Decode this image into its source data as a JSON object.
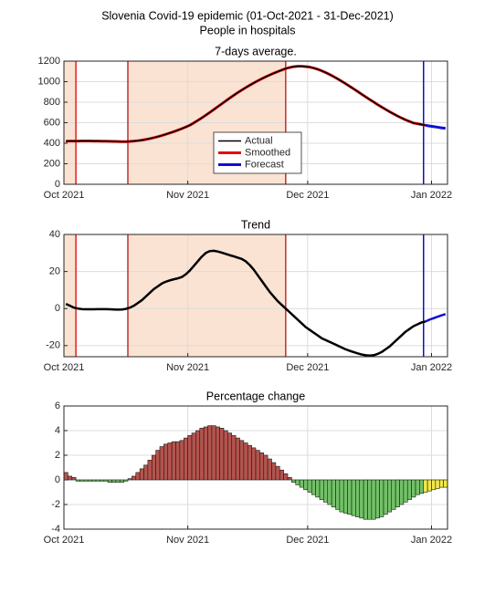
{
  "title": "Slovenia Covid-19 epidemic (01-Oct-2021 - 31-Dec-2021)",
  "subtitle": "People in hospitals",
  "chart_data": [
    {
      "type": "line",
      "title": "7-days average.",
      "categories": [
        "Oct 2021",
        null,
        null,
        null,
        null,
        null,
        null,
        null,
        null,
        null,
        null,
        null,
        null,
        null,
        null,
        null,
        null,
        null,
        null,
        null,
        null,
        null,
        null,
        null,
        null,
        null,
        null,
        null,
        null,
        null,
        null,
        "Nov 2021",
        null,
        null,
        null,
        null,
        null,
        null,
        null,
        null,
        null,
        null,
        null,
        null,
        null,
        null,
        null,
        null,
        null,
        null,
        null,
        null,
        null,
        null,
        null,
        null,
        null,
        null,
        null,
        null,
        null,
        "Dec 2021",
        null,
        null,
        null,
        null,
        null,
        null,
        null,
        null,
        null,
        null,
        null,
        null,
        null,
        null,
        null,
        null,
        null,
        null,
        null,
        null,
        null,
        null,
        null,
        null,
        null,
        null,
        null,
        null,
        null,
        null,
        "Jan 2022",
        null,
        null,
        null
      ],
      "ylim": [
        0,
        1200
      ],
      "yticks": [
        0,
        200,
        400,
        600,
        800,
        1000,
        1200
      ],
      "grid": true,
      "legend": "south",
      "span_color": "#fae3d3",
      "spans": [
        [
          0,
          3
        ],
        [
          16,
          55.5
        ]
      ],
      "vlines": [
        {
          "x": 3,
          "color": "#e02020"
        },
        {
          "x": 16,
          "color": "#c03030"
        },
        {
          "x": 55.5,
          "color": "#c03030"
        },
        {
          "x": 90,
          "color": "#1010c0"
        }
      ],
      "series": [
        {
          "name": "Actual",
          "color": "#000000",
          "width": 1.5,
          "values": [
            420,
            421,
            421,
            421,
            422,
            422,
            422,
            421,
            421,
            420,
            420,
            419,
            418,
            417,
            416,
            416,
            418,
            421,
            425,
            430,
            437,
            445,
            454,
            464,
            475,
            487,
            500,
            513,
            527,
            542,
            558,
            575,
            598,
            622,
            647,
            673,
            700,
            728,
            756,
            784,
            812,
            840,
            867,
            893,
            918,
            942,
            965,
            987,
            1008,
            1028,
            1047,
            1065,
            1082,
            1098,
            1113,
            1127,
            1138,
            1146,
            1150,
            1150,
            1147,
            1142,
            1133,
            1121,
            1106,
            1089,
            1070,
            1049,
            1027,
            1004,
            980,
            955,
            930,
            904,
            878,
            852,
            827,
            802,
            777,
            753,
            730,
            707,
            686,
            665,
            646,
            628,
            612,
            597,
            590,
            582,
            575,
            null,
            null,
            null,
            null,
            null
          ]
        },
        {
          "name": "Smoothed",
          "color": "#e01010",
          "width": 3,
          "values": [
            420,
            421,
            421,
            421,
            422,
            422,
            422,
            421,
            421,
            420,
            420,
            419,
            418,
            417,
            416,
            416,
            418,
            421,
            425,
            430,
            437,
            445,
            454,
            464,
            475,
            487,
            500,
            513,
            527,
            542,
            558,
            575,
            598,
            622,
            647,
            673,
            700,
            728,
            756,
            784,
            812,
            840,
            867,
            893,
            918,
            942,
            965,
            987,
            1008,
            1028,
            1047,
            1065,
            1082,
            1098,
            1113,
            1127,
            1138,
            1146,
            1150,
            1150,
            1147,
            1142,
            1133,
            1121,
            1106,
            1089,
            1070,
            1049,
            1027,
            1004,
            980,
            955,
            930,
            904,
            878,
            852,
            827,
            802,
            777,
            753,
            730,
            707,
            686,
            665,
            646,
            628,
            612,
            597,
            590,
            582,
            575,
            null,
            null,
            null,
            null,
            null
          ]
        },
        {
          "name": "Forecast",
          "color": "#1010d0",
          "width": 3,
          "values": [
            null,
            null,
            null,
            null,
            null,
            null,
            null,
            null,
            null,
            null,
            null,
            null,
            null,
            null,
            null,
            null,
            null,
            null,
            null,
            null,
            null,
            null,
            null,
            null,
            null,
            null,
            null,
            null,
            null,
            null,
            null,
            null,
            null,
            null,
            null,
            null,
            null,
            null,
            null,
            null,
            null,
            null,
            null,
            null,
            null,
            null,
            null,
            null,
            null,
            null,
            null,
            null,
            null,
            null,
            null,
            null,
            null,
            null,
            null,
            null,
            null,
            null,
            null,
            null,
            null,
            null,
            null,
            null,
            null,
            null,
            null,
            null,
            null,
            null,
            null,
            null,
            null,
            null,
            null,
            null,
            null,
            null,
            null,
            null,
            null,
            null,
            null,
            null,
            null,
            null,
            575,
            568,
            562,
            556,
            550,
            545
          ]
        }
      ]
    },
    {
      "type": "line",
      "title": "Trend",
      "categories": [
        "Oct 2021",
        null,
        null,
        null,
        null,
        null,
        null,
        null,
        null,
        null,
        null,
        null,
        null,
        null,
        null,
        null,
        null,
        null,
        null,
        null,
        null,
        null,
        null,
        null,
        null,
        null,
        null,
        null,
        null,
        null,
        null,
        "Nov 2021",
        null,
        null,
        null,
        null,
        null,
        null,
        null,
        null,
        null,
        null,
        null,
        null,
        null,
        null,
        null,
        null,
        null,
        null,
        null,
        null,
        null,
        null,
        null,
        null,
        null,
        null,
        null,
        null,
        null,
        "Dec 2021",
        null,
        null,
        null,
        null,
        null,
        null,
        null,
        null,
        null,
        null,
        null,
        null,
        null,
        null,
        null,
        null,
        null,
        null,
        null,
        null,
        null,
        null,
        null,
        null,
        null,
        null,
        null,
        null,
        null,
        null,
        "Jan 2022",
        null,
        null,
        null
      ],
      "ylim": [
        -26,
        40
      ],
      "yticks": [
        -20,
        0,
        20,
        40
      ],
      "grid": true,
      "span_color": "#fae3d3",
      "spans": [
        [
          0,
          3
        ],
        [
          16,
          55.5
        ]
      ],
      "vlines": [
        {
          "x": 3,
          "color": "#e02020"
        },
        {
          "x": 16,
          "color": "#c03030"
        },
        {
          "x": 55.5,
          "color": "#c03030"
        },
        {
          "x": 90,
          "color": "#1010c0"
        }
      ],
      "series": [
        {
          "color": "#000000",
          "width": 2.5,
          "values": [
            2.5,
            1.5,
            0.5,
            0,
            -0.3,
            -0.4,
            -0.4,
            -0.4,
            -0.3,
            -0.3,
            -0.3,
            -0.4,
            -0.5,
            -0.6,
            -0.5,
            -0.2,
            0.5,
            1.5,
            3,
            4.5,
            6.5,
            8.5,
            10.5,
            12,
            13.5,
            14.5,
            15.2,
            15.8,
            16.3,
            17,
            18.5,
            20.5,
            23,
            25.5,
            28,
            30,
            31,
            31.2,
            30.8,
            30.2,
            29.5,
            28.8,
            28.2,
            27.5,
            26.8,
            25.5,
            23.5,
            21,
            18,
            15,
            12,
            9,
            6.5,
            4,
            2,
            0,
            -2,
            -4,
            -6,
            -8,
            -10,
            -11.5,
            -13,
            -14.5,
            -16,
            -17,
            -18,
            -19,
            -20,
            -21,
            -22,
            -22.8,
            -23.5,
            -24.2,
            -24.8,
            -25.2,
            -25.4,
            -25.2,
            -24.5,
            -23.5,
            -22,
            -20.5,
            -18.5,
            -16.5,
            -14.5,
            -12.5,
            -11,
            -9.5,
            -8.5,
            -7.5,
            -7,
            null,
            null,
            null,
            null,
            null
          ]
        },
        {
          "color": "#1010d0",
          "width": 2.5,
          "values": [
            null,
            null,
            null,
            null,
            null,
            null,
            null,
            null,
            null,
            null,
            null,
            null,
            null,
            null,
            null,
            null,
            null,
            null,
            null,
            null,
            null,
            null,
            null,
            null,
            null,
            null,
            null,
            null,
            null,
            null,
            null,
            null,
            null,
            null,
            null,
            null,
            null,
            null,
            null,
            null,
            null,
            null,
            null,
            null,
            null,
            null,
            null,
            null,
            null,
            null,
            null,
            null,
            null,
            null,
            null,
            null,
            null,
            null,
            null,
            null,
            null,
            null,
            null,
            null,
            null,
            null,
            null,
            null,
            null,
            null,
            null,
            null,
            null,
            null,
            null,
            null,
            null,
            null,
            null,
            null,
            null,
            null,
            null,
            null,
            null,
            null,
            null,
            null,
            null,
            null,
            -7,
            -6,
            -5.2,
            -4.4,
            -3.7,
            -3
          ]
        }
      ]
    },
    {
      "type": "bar",
      "title": "Percentage change",
      "categories": [
        "Oct 2021",
        null,
        null,
        null,
        null,
        null,
        null,
        null,
        null,
        null,
        null,
        null,
        null,
        null,
        null,
        null,
        null,
        null,
        null,
        null,
        null,
        null,
        null,
        null,
        null,
        null,
        null,
        null,
        null,
        null,
        null,
        "Nov 2021",
        null,
        null,
        null,
        null,
        null,
        null,
        null,
        null,
        null,
        null,
        null,
        null,
        null,
        null,
        null,
        null,
        null,
        null,
        null,
        null,
        null,
        null,
        null,
        null,
        null,
        null,
        null,
        null,
        null,
        "Dec 2021",
        null,
        null,
        null,
        null,
        null,
        null,
        null,
        null,
        null,
        null,
        null,
        null,
        null,
        null,
        null,
        null,
        null,
        null,
        null,
        null,
        null,
        null,
        null,
        null,
        null,
        null,
        null,
        null,
        null,
        null,
        "Jan 2022",
        null,
        null,
        null
      ],
      "ylim": [
        -4,
        6
      ],
      "yticks": [
        -4,
        -2,
        0,
        2,
        4,
        6
      ],
      "grid": true,
      "series": [
        {
          "colors": {
            "positive": "#b5534d",
            "negative": "#72c267"
          },
          "values": [
            0.6,
            0.3,
            0.2,
            -0.1,
            -0.1,
            -0.1,
            -0.1,
            -0.1,
            -0.1,
            -0.1,
            -0.1,
            -0.2,
            -0.2,
            -0.2,
            -0.2,
            -0.1,
            0.1,
            0.3,
            0.6,
            0.9,
            1.2,
            1.6,
            2,
            2.4,
            2.7,
            2.9,
            3,
            3.1,
            3.1,
            3.2,
            3.4,
            3.6,
            3.8,
            4,
            4.2,
            4.3,
            4.4,
            4.4,
            4.3,
            4.2,
            4,
            3.8,
            3.6,
            3.4,
            3.2,
            3,
            2.8,
            2.6,
            2.4,
            2.2,
            2,
            1.7,
            1.4,
            1.1,
            0.8,
            0.5,
            0.2,
            -0.2,
            -0.4,
            -0.6,
            -0.8,
            -1,
            -1.2,
            -1.4,
            -1.6,
            -1.8,
            -2,
            -2.2,
            -2.4,
            -2.6,
            -2.7,
            -2.8,
            -2.9,
            -3,
            -3.1,
            -3.2,
            -3.2,
            -3.2,
            -3.1,
            -3,
            -2.8,
            -2.6,
            -2.4,
            -2.2,
            -2,
            -1.8,
            -1.6,
            -1.4,
            -1.2,
            -1.1,
            null,
            null,
            null,
            null,
            null,
            null
          ]
        },
        {
          "color": "#f2ea45",
          "values": [
            null,
            null,
            null,
            null,
            null,
            null,
            null,
            null,
            null,
            null,
            null,
            null,
            null,
            null,
            null,
            null,
            null,
            null,
            null,
            null,
            null,
            null,
            null,
            null,
            null,
            null,
            null,
            null,
            null,
            null,
            null,
            null,
            null,
            null,
            null,
            null,
            null,
            null,
            null,
            null,
            null,
            null,
            null,
            null,
            null,
            null,
            null,
            null,
            null,
            null,
            null,
            null,
            null,
            null,
            null,
            null,
            null,
            null,
            null,
            null,
            null,
            null,
            null,
            null,
            null,
            null,
            null,
            null,
            null,
            null,
            null,
            null,
            null,
            null,
            null,
            null,
            null,
            null,
            null,
            null,
            null,
            null,
            null,
            null,
            null,
            null,
            null,
            null,
            null,
            null,
            -1,
            -0.9,
            -0.8,
            -0.7,
            -0.6,
            -0.6
          ]
        }
      ]
    }
  ]
}
